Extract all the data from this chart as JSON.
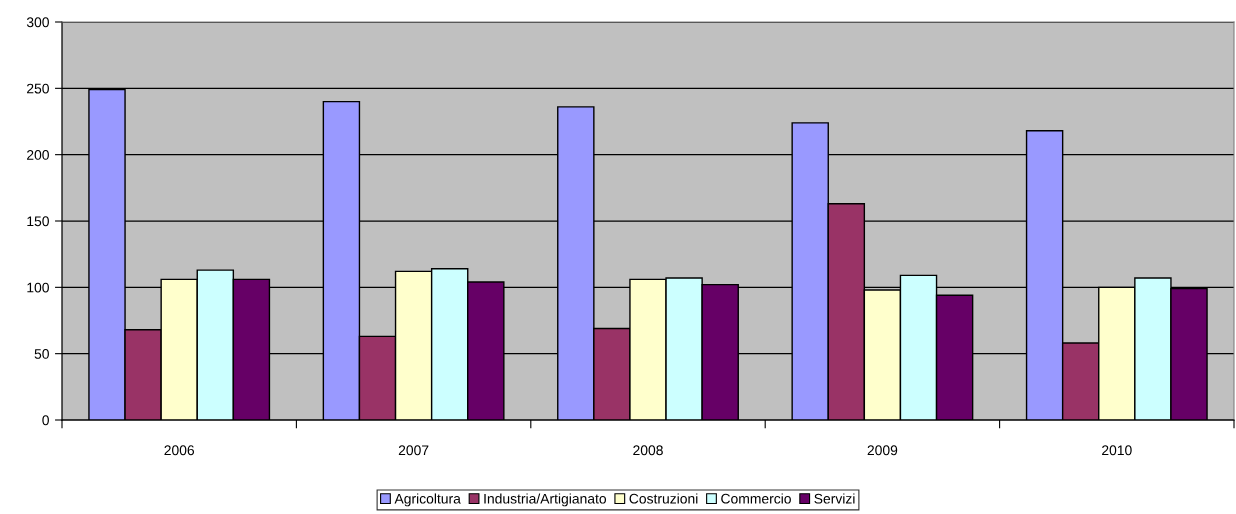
{
  "chart_data": {
    "type": "bar",
    "categories": [
      "2006",
      "2007",
      "2008",
      "2009",
      "2010"
    ],
    "series": [
      {
        "name": "Agricoltura",
        "color": "#9999ff",
        "values": [
          249,
          240,
          236,
          224,
          218
        ]
      },
      {
        "name": "Industria/Artigianato",
        "color": "#993366",
        "values": [
          68,
          63,
          69,
          163,
          58
        ]
      },
      {
        "name": "Costruzioni",
        "color": "#ffffcc",
        "values": [
          106,
          112,
          106,
          98,
          100
        ]
      },
      {
        "name": "Commercio",
        "color": "#ccffff",
        "values": [
          113,
          114,
          107,
          109,
          107
        ]
      },
      {
        "name": "Servizi",
        "color": "#660066",
        "values": [
          106,
          104,
          102,
          94,
          99
        ]
      }
    ],
    "ylim": [
      0,
      300
    ],
    "yticks": [
      0,
      50,
      100,
      150,
      200,
      250,
      300
    ],
    "grid": "y",
    "legend": "bottom"
  }
}
